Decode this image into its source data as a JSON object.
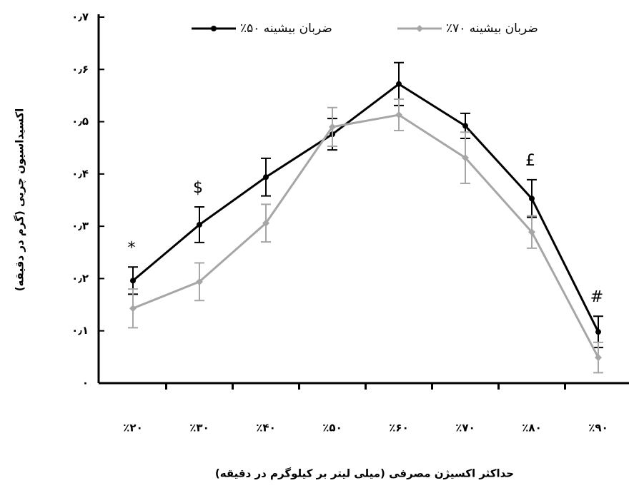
{
  "chart_data": {
    "type": "line",
    "x_label": "حداکثر اکسیژن مصرفی (میلی لیتر بر کیلوگرم در دقیقه)",
    "y_label": "اکسیداسیون چربی (گرم در دقیقه)",
    "categories": [
      "٪۲۰",
      "٪۳۰",
      "٪۴۰",
      "٪۵۰",
      "٪۶۰",
      "٪۷۰",
      "٪۸۰",
      "٪۹۰"
    ],
    "series": [
      {
        "name": "٪۵۰ ضربان بیشینه",
        "color": "#000000",
        "marker": "circle",
        "values": [
          0.196,
          0.303,
          0.394,
          0.476,
          0.572,
          0.492,
          0.353,
          0.098
        ],
        "errors": [
          0.026,
          0.034,
          0.036,
          0.03,
          0.041,
          0.024,
          0.036,
          0.03
        ]
      },
      {
        "name": "٪۷۰ ضربان بیشینه",
        "color": "#a6a6a6",
        "marker": "diamond",
        "values": [
          0.143,
          0.194,
          0.306,
          0.49,
          0.513,
          0.431,
          0.289,
          0.049
        ],
        "errors": [
          0.037,
          0.036,
          0.036,
          0.037,
          0.03,
          0.049,
          0.031,
          0.029
        ]
      }
    ],
    "annotations": [
      "*",
      "$",
      null,
      null,
      null,
      null,
      "£",
      "#"
    ],
    "ylim": [
      0,
      0.7
    ],
    "yticks": [
      {
        "value": 0,
        "label": "۰"
      },
      {
        "value": 0.1,
        "label": "۰٫۱"
      },
      {
        "value": 0.2,
        "label": "۰٫۲"
      },
      {
        "value": 0.3,
        "label": "۰٫۳"
      },
      {
        "value": 0.4,
        "label": "۰٫۴"
      },
      {
        "value": 0.5,
        "label": "۰٫۵"
      },
      {
        "value": 0.6,
        "label": "۰٫۶"
      },
      {
        "value": 0.7,
        "label": "۰٫۷"
      }
    ],
    "grid": false
  }
}
